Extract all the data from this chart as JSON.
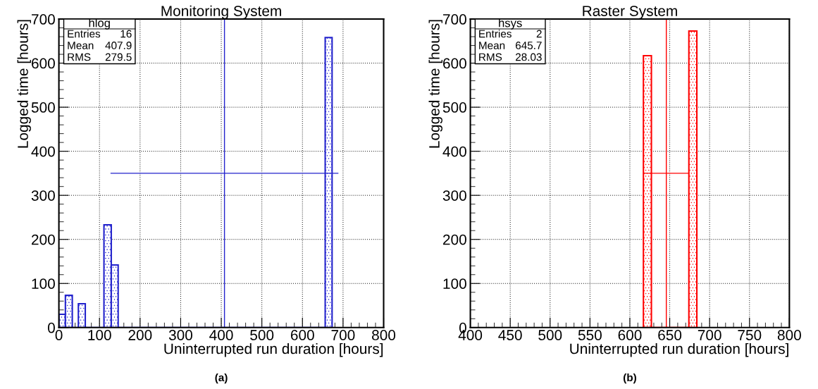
{
  "chart_data": [
    {
      "type": "histogram",
      "title": "Monitoring System",
      "xlabel": "Uninterrupted run duration [hours]",
      "ylabel": "Logged time [hours]",
      "bins": [
        0,
        16,
        33,
        48,
        65,
        111,
        129,
        146,
        656,
        673
      ],
      "values": [
        30,
        73,
        0,
        54,
        0,
        233,
        142,
        0,
        658
      ],
      "color": "#2222cc",
      "series": [
        {
          "type": "line",
          "color": "#2222cc",
          "x": [
            128.4,
            687.4
          ],
          "values": [
            350,
            350
          ]
        },
        {
          "type": "line",
          "color": "#2222cc",
          "x": [
            407.9,
            407.9
          ],
          "values": [
            0,
            700
          ]
        }
      ],
      "xlim": [
        0,
        800
      ],
      "xticks": [
        0,
        100,
        200,
        300,
        400,
        500,
        600,
        700,
        800
      ],
      "ylim": [
        0,
        700
      ],
      "yticks": [
        0,
        100,
        200,
        300,
        400,
        500,
        600,
        700
      ],
      "grid": true,
      "annotations": [
        "hlog",
        "Entries",
        "16",
        "Mean",
        "407.9",
        "RMS",
        "279.5",
        "(a)"
      ]
    },
    {
      "type": "histogram",
      "title": "Raster System",
      "xlabel": "Uninterrupted run duration [hours]",
      "ylabel": "Logged time [hours]",
      "bins": [
        617,
        627,
        674,
        684
      ],
      "values": [
        617,
        0,
        673
      ],
      "color": "#ff0000",
      "series": [
        {
          "type": "line",
          "color": "#ff0000",
          "x": [
            617.7,
            673.7
          ],
          "values": [
            350,
            350
          ]
        },
        {
          "type": "line",
          "color": "#ff0000",
          "x": [
            645.7,
            645.7
          ],
          "values": [
            0,
            700
          ]
        }
      ],
      "xlim": [
        400,
        800
      ],
      "xticks": [
        400,
        450,
        500,
        550,
        600,
        650,
        700,
        750,
        800
      ],
      "ylim": [
        0,
        700
      ],
      "yticks": [
        0,
        100,
        200,
        300,
        400,
        500,
        600,
        700
      ],
      "grid": true,
      "annotations": [
        "hsys",
        "Entries",
        "2",
        "Mean",
        "645.7",
        "RMS",
        "28.03",
        "(b)"
      ]
    }
  ]
}
